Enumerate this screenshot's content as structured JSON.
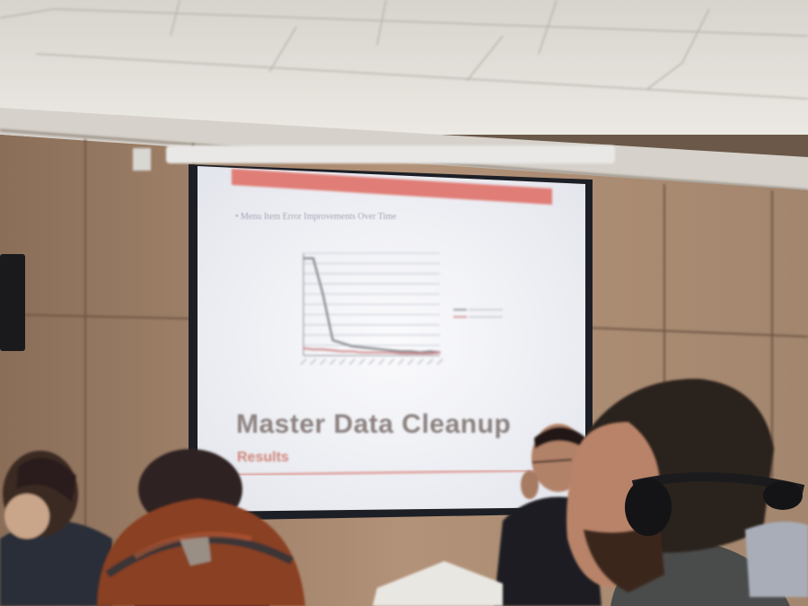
{
  "scene": {
    "description_tag": "photo of a presentation slide projected in a lecture room",
    "colors": {
      "ceiling": "#e6e2dc",
      "wall_panel": "#a98a6e",
      "screen": "#f2f3f7",
      "slide_banner": "#e07d76",
      "slide_rule": "#d9877f"
    }
  },
  "slide": {
    "bullet": "Menu Item Error Improvements Over Time",
    "title": "Master Data Cleanup",
    "subtitle": "Results"
  },
  "chart_data": {
    "type": "line",
    "title": "",
    "xlabel": "",
    "ylabel": "",
    "x": [
      1,
      2,
      3,
      4,
      5,
      6,
      7,
      8,
      9,
      10,
      11,
      12,
      13,
      14,
      15
    ],
    "series": [
      {
        "values": [
          95,
          95,
          60,
          15,
          12,
          9,
          8,
          7,
          6,
          5,
          4,
          4,
          3,
          4,
          3
        ]
      },
      {
        "values": [
          7,
          6,
          6,
          5,
          4,
          4,
          3,
          3,
          3,
          3,
          2,
          2,
          2,
          2,
          3
        ]
      }
    ],
    "ylim": [
      0,
      100
    ],
    "grid": true,
    "legend": "right",
    "colors": [
      "#7f8187",
      "#c97c7e"
    ]
  }
}
